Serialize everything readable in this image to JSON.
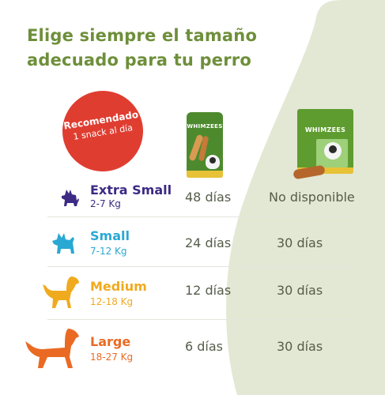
{
  "title": {
    "line1": "Elige siempre el tamaño",
    "line2": "adecuado para tu perro"
  },
  "badge": {
    "line1": "Recomendado",
    "line2": "1 snack al día"
  },
  "products": {
    "small_pack_logo": "WHIMZEES",
    "big_box_logo": "WHIMZEES"
  },
  "rows": [
    {
      "name": "Extra Small",
      "weight": "2-7 Kg",
      "col1": "48 días",
      "col2": "No disponible",
      "color": "#3c2a84",
      "icon": "extra-small-dog-icon"
    },
    {
      "name": "Small",
      "weight": "7-12 Kg",
      "col1": "24 días",
      "col2": "30 días",
      "color": "#2aa8d4",
      "icon": "small-dog-icon"
    },
    {
      "name": "Medium",
      "weight": "12-18 Kg",
      "col1": "12 días",
      "col2": "30 días",
      "color": "#f0aa1e",
      "icon": "medium-dog-icon"
    },
    {
      "name": "Large",
      "weight": "18-27 Kg",
      "col1": "6 días",
      "col2": "30 días",
      "color": "#ea6a24",
      "icon": "large-dog-icon"
    }
  ],
  "colors": {
    "title": "#6e8f3a",
    "background_shape": "#e2e8d4",
    "badge": "#e03d31"
  }
}
